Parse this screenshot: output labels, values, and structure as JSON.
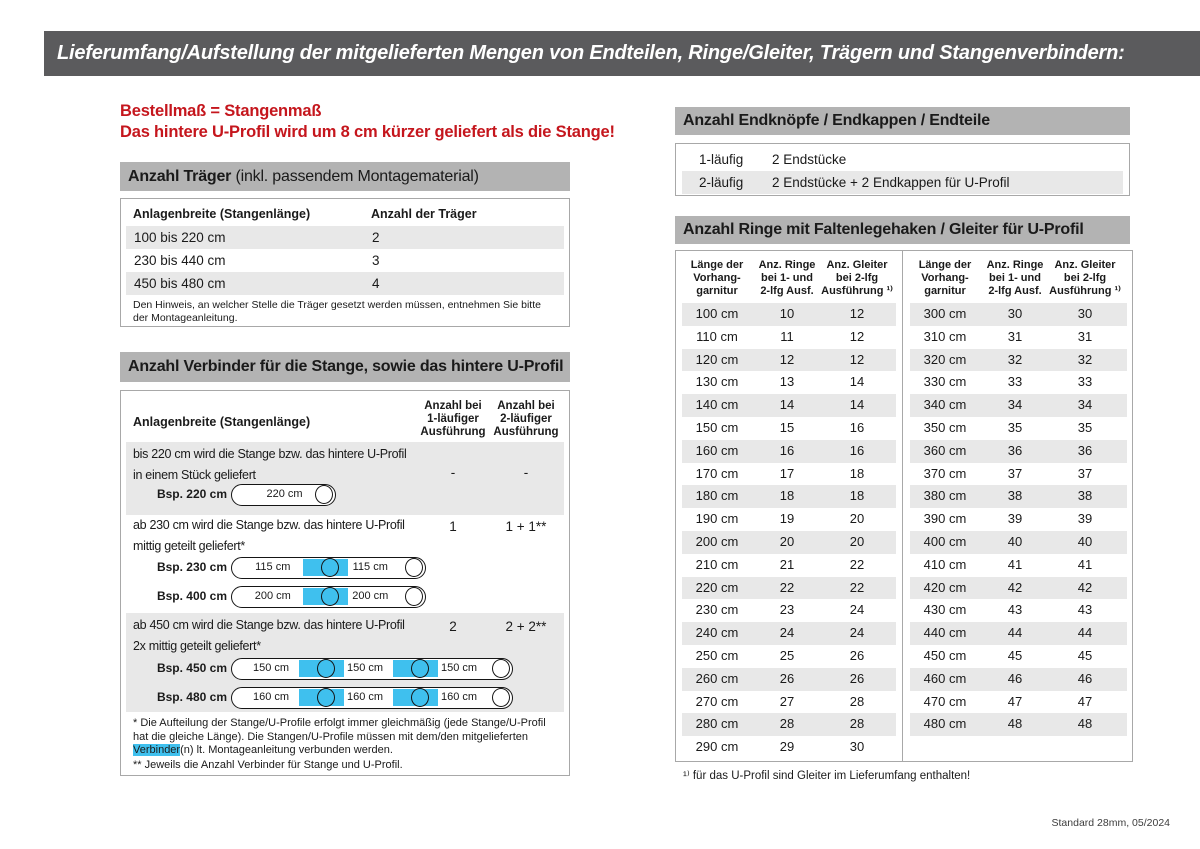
{
  "header": {
    "title": "Lieferumfang/Aufstellung der mitgelieferten Mengen von Endteilen, Ringe/Gleiter, Trägern und Stangenverbindern:"
  },
  "notice": {
    "line1": "Bestellmaß = Stangenmaß",
    "line2": "Das hintere U-Profil wird um 8 cm kürzer geliefert als die Stange!"
  },
  "colors": {
    "accent_red": "#c5161d",
    "connector_blue": "#3fc0ee",
    "title_bar_gray": "#5b5b5d",
    "section_bar_gray": "#b3b3b3",
    "row_stripe_gray": "#e8e8e8"
  },
  "traeger": {
    "title_bold": "Anzahl Träger",
    "title_normal": " (inkl. passendem Montagematerial)",
    "col1": "Anlagenbreite (Stangenlänge)",
    "col2": "Anzahl der Träger",
    "rows": [
      {
        "breite": "100 bis 220 cm",
        "anzahl": "2"
      },
      {
        "breite": "230 bis 440 cm",
        "anzahl": "3"
      },
      {
        "breite": "450 bis 480 cm",
        "anzahl": "4"
      }
    ],
    "note": "Den Hinweis, an welcher Stelle die Träger gesetzt werden müssen, entnehmen Sie bitte der Montageanleitung."
  },
  "verbinder": {
    "title": "Anzahl Verbinder für die Stange, sowie das hintere U-Profil",
    "col1": "Anlagenbreite (Stangenlänge)",
    "col2": "Anzahl bei\n1-läufiger\nAusführung",
    "col3": "Anzahl bei\n2-läufiger\nAusführung",
    "rows": [
      {
        "text": "bis 220 cm wird die Stange bzw. das hintere U-Profil\nin einem Stück geliefert",
        "v1": "-",
        "v2": "-"
      },
      {
        "text": "ab 230 cm wird die Stange bzw. das hintere U-Profil\nmittig geteilt geliefert*",
        "v1": "1",
        "v2": "1 + 1**"
      },
      {
        "text": "ab 450 cm wird die Stange bzw. das hintere U-Profil\n2x mittig geteilt geliefert*",
        "v1": "2",
        "v2": "2 + 2**"
      }
    ],
    "rods": [
      {
        "label": "Bsp. 220 cm",
        "segments": [
          "220 cm"
        ]
      },
      {
        "label": "Bsp. 230 cm",
        "segments": [
          "115 cm",
          "115 cm"
        ]
      },
      {
        "label": "Bsp. 400 cm",
        "segments": [
          "200 cm",
          "200 cm"
        ]
      },
      {
        "label": "Bsp. 450 cm",
        "segments": [
          "150 cm",
          "150 cm",
          "150 cm"
        ]
      },
      {
        "label": "Bsp. 480 cm",
        "segments": [
          "160 cm",
          "160 cm",
          "160 cm"
        ]
      }
    ],
    "footnote1_pre": "* Die Aufteilung der Stange/U-Profile erfolgt immer gleichmäßig (jede Stange/U-Profil hat die gleiche Länge). Die Stangen/U-Profile müssen mit dem/den mitgelieferten ",
    "footnote1_highlight": "Verbinder",
    "footnote1_post": "(n) lt. Montageanleitung verbunden werden.",
    "footnote2": "** Jeweils die Anzahl Verbinder für Stange und U-Profil."
  },
  "endteile": {
    "title": "Anzahl Endknöpfe / Endkappen / Endteile",
    "rows": [
      {
        "typ": "1-läufig",
        "inhalt": "2 Endstücke"
      },
      {
        "typ": "2-läufig",
        "inhalt": "2 Endstücke + 2 Endkappen für U-Profil"
      }
    ]
  },
  "ringe": {
    "title": "Anzahl Ringe mit Faltenlegehaken / Gleiter für U-Profil",
    "col1": "Länge der\nVorhang-\ngarnitur",
    "col2": "Anz. Ringe\nbei 1- und\n2-lfg Ausf.",
    "col3": "Anz. Gleiter\nbei 2-lfg\nAusführung ¹⁾",
    "left_rows": [
      [
        "100 cm",
        "10",
        "12"
      ],
      [
        "110 cm",
        "11",
        "12"
      ],
      [
        "120 cm",
        "12",
        "12"
      ],
      [
        "130 cm",
        "13",
        "14"
      ],
      [
        "140 cm",
        "14",
        "14"
      ],
      [
        "150 cm",
        "15",
        "16"
      ],
      [
        "160 cm",
        "16",
        "16"
      ],
      [
        "170 cm",
        "17",
        "18"
      ],
      [
        "180 cm",
        "18",
        "18"
      ],
      [
        "190 cm",
        "19",
        "20"
      ],
      [
        "200 cm",
        "20",
        "20"
      ],
      [
        "210 cm",
        "21",
        "22"
      ],
      [
        "220 cm",
        "22",
        "22"
      ],
      [
        "230 cm",
        "23",
        "24"
      ],
      [
        "240 cm",
        "24",
        "24"
      ],
      [
        "250 cm",
        "25",
        "26"
      ],
      [
        "260 cm",
        "26",
        "26"
      ],
      [
        "270 cm",
        "27",
        "28"
      ],
      [
        "280 cm",
        "28",
        "28"
      ],
      [
        "290 cm",
        "29",
        "30"
      ]
    ],
    "right_rows": [
      [
        "300 cm",
        "30",
        "30"
      ],
      [
        "310 cm",
        "31",
        "31"
      ],
      [
        "320 cm",
        "32",
        "32"
      ],
      [
        "330 cm",
        "33",
        "33"
      ],
      [
        "340 cm",
        "34",
        "34"
      ],
      [
        "350 cm",
        "35",
        "35"
      ],
      [
        "360 cm",
        "36",
        "36"
      ],
      [
        "370 cm",
        "37",
        "37"
      ],
      [
        "380 cm",
        "38",
        "38"
      ],
      [
        "390 cm",
        "39",
        "39"
      ],
      [
        "400 cm",
        "40",
        "40"
      ],
      [
        "410 cm",
        "41",
        "41"
      ],
      [
        "420 cm",
        "42",
        "42"
      ],
      [
        "430 cm",
        "43",
        "43"
      ],
      [
        "440 cm",
        "44",
        "44"
      ],
      [
        "450 cm",
        "45",
        "45"
      ],
      [
        "460 cm",
        "46",
        "46"
      ],
      [
        "470 cm",
        "47",
        "47"
      ],
      [
        "480 cm",
        "48",
        "48"
      ]
    ],
    "footnote": "¹⁾ für das U-Profil sind Gleiter im Lieferumfang enthalten!"
  },
  "footer": {
    "label": "Standard 28mm, 05/2024"
  }
}
